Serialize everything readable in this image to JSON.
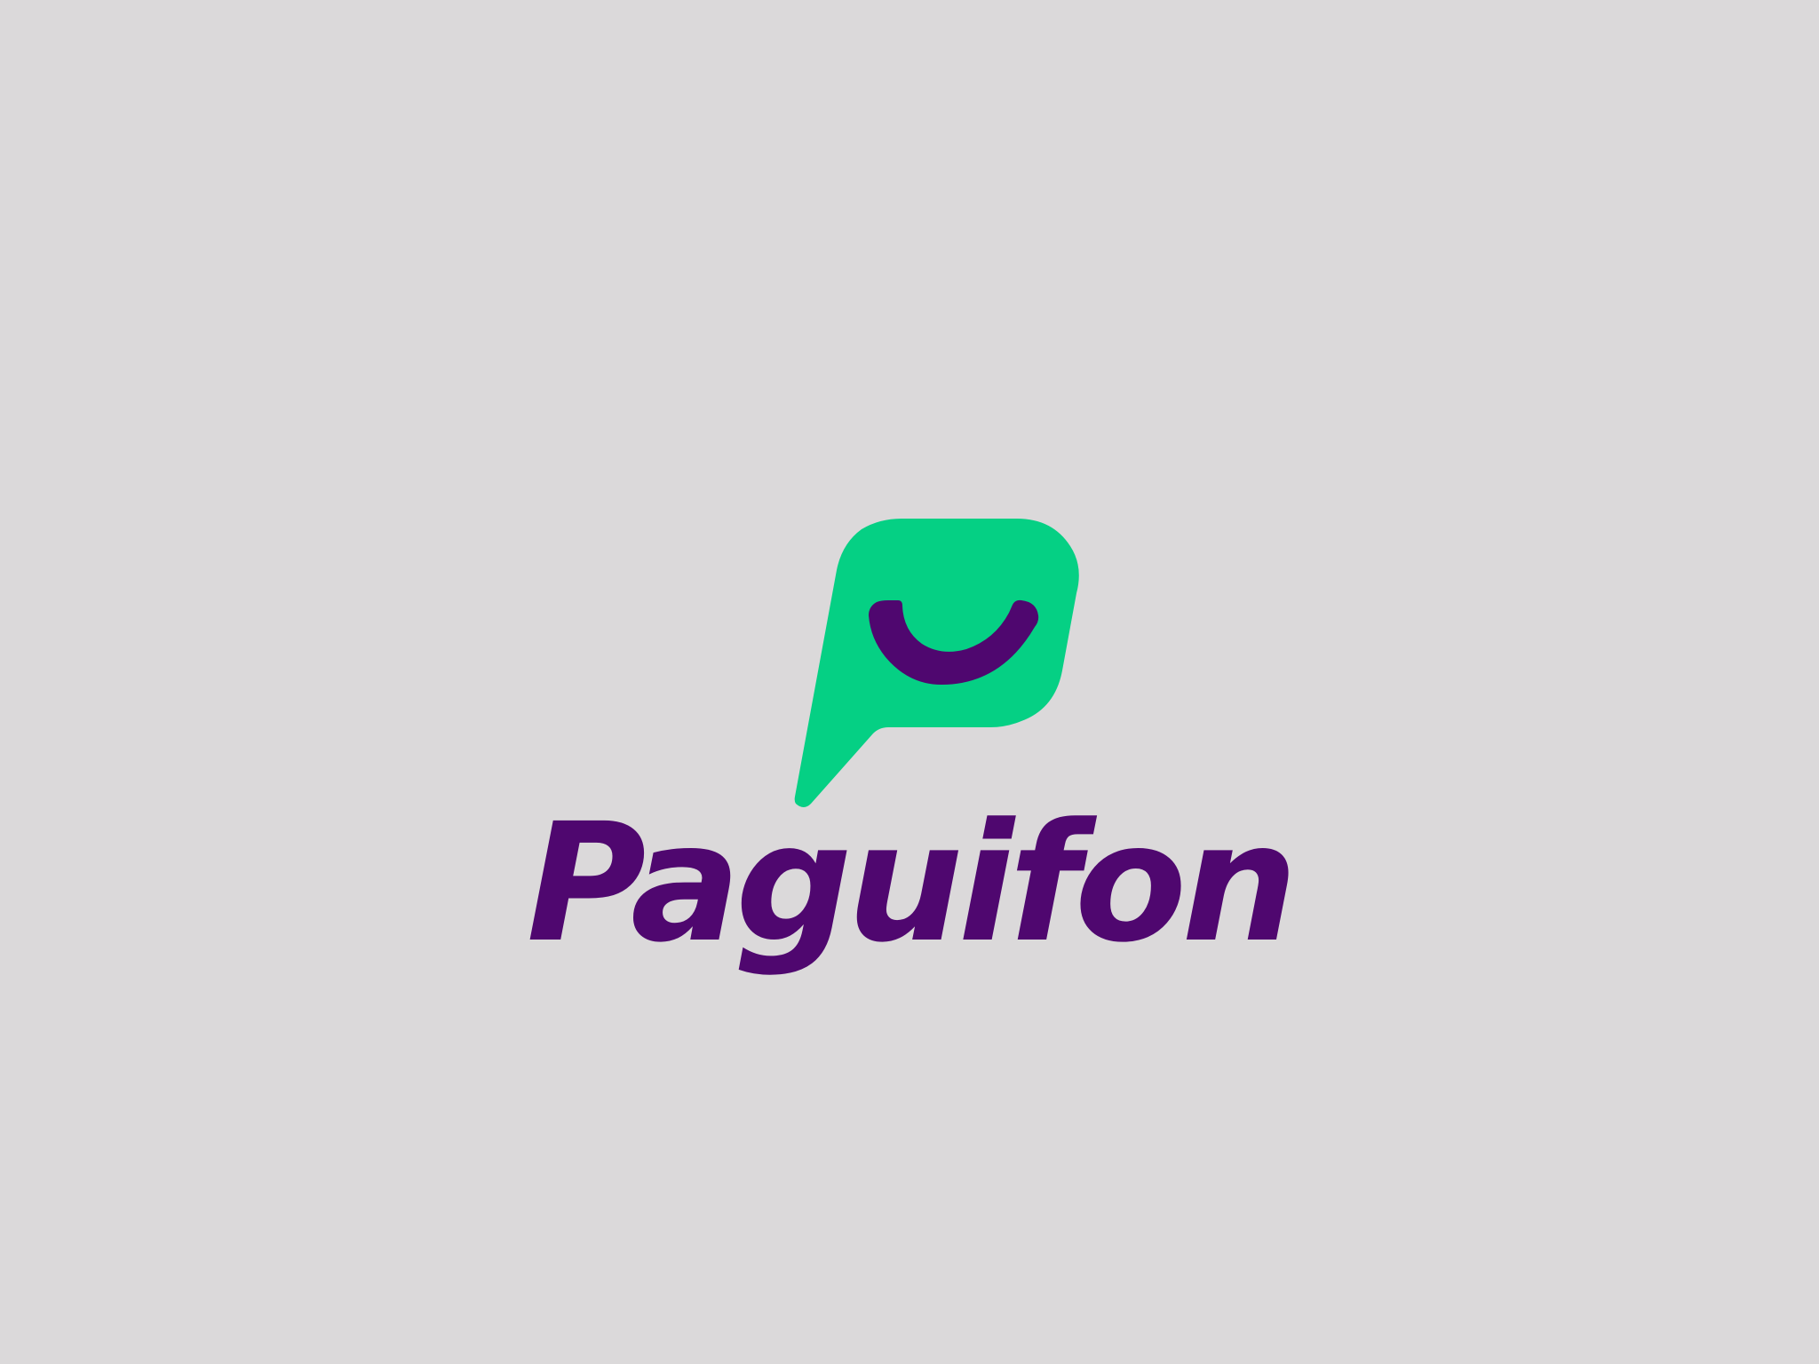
{
  "logo": {
    "brand_name": "Paguifon",
    "icon_name": "smiling-speech-bubble-icon",
    "colors": {
      "background": "#dbd9da",
      "bubble": "#05d084",
      "brand_purple": "#4f076f"
    }
  }
}
